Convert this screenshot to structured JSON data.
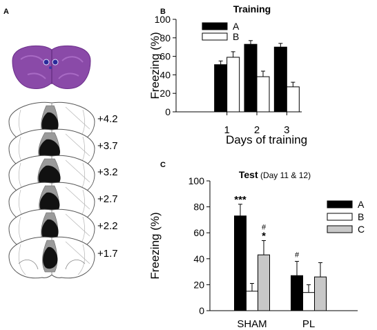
{
  "panels": {
    "A": {
      "label": "A",
      "levels": [
        "+4.2",
        "+3.7",
        "+3.2",
        "+2.7",
        "+2.2",
        "+1.7"
      ]
    },
    "B": {
      "label": "B"
    },
    "C": {
      "label": "C"
    }
  },
  "colors": {
    "A": "#000000",
    "B": "#ffffff",
    "C": "#c8c8c8",
    "lesion_dark": "#111111",
    "lesion_gray": "#9a9a9a",
    "stain": "#8a4aa8"
  },
  "chart_data": [
    {
      "type": "bar",
      "panel": "B",
      "title": "Training",
      "title_suffix": "",
      "xlabel": "Days of training",
      "ylabel": "Freezing (%)",
      "ylim": [
        0,
        100
      ],
      "yticks": [
        "0",
        "20",
        "40",
        "60",
        "80",
        "100"
      ],
      "categories": [
        "1",
        "2",
        "3"
      ],
      "legend_position": "top-left",
      "series": [
        {
          "name": "A",
          "color": "#000000",
          "values": [
            51,
            73,
            70
          ],
          "errors": [
            4,
            4,
            4
          ],
          "annotations": [
            "",
            "",
            ""
          ]
        },
        {
          "name": "B",
          "color": "#ffffff",
          "values": [
            59,
            38,
            27
          ],
          "errors": [
            6,
            6,
            5
          ],
          "annotations": [
            "",
            "",
            ""
          ]
        }
      ]
    },
    {
      "type": "bar",
      "panel": "C",
      "title": "Test",
      "title_suffix": "(Day 11 & 12)",
      "xlabel": "",
      "ylabel": "Freezing (%)",
      "ylim": [
        0,
        100
      ],
      "yticks": [
        "0",
        "20",
        "40",
        "60",
        "80",
        "100"
      ],
      "categories": [
        "SHAM",
        "PL"
      ],
      "legend_position": "top-right",
      "series": [
        {
          "name": "A",
          "color": "#000000",
          "values": [
            73,
            27
          ],
          "errors": [
            9,
            11
          ],
          "annotations": [
            "***",
            "#"
          ]
        },
        {
          "name": "B",
          "color": "#ffffff",
          "values": [
            15,
            14
          ],
          "errors": [
            6,
            6
          ],
          "annotations": [
            "",
            ""
          ]
        },
        {
          "name": "C",
          "color": "#c8c8c8",
          "values": [
            43,
            26
          ],
          "errors": [
            11,
            11
          ],
          "annotations": [
            "#\n*",
            ""
          ]
        }
      ]
    }
  ]
}
